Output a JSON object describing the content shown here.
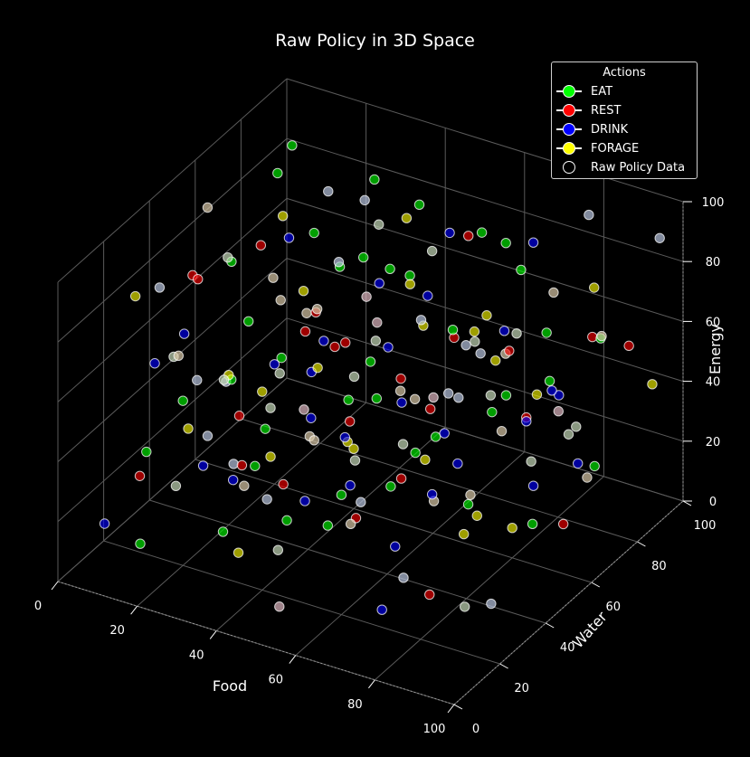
{
  "chart_data": {
    "type": "scatter",
    "projection": "3d",
    "title": "Raw Policy in 3D Space",
    "xlabel": "Food",
    "ylabel": "Water",
    "zlabel": "Energy",
    "xlim": [
      0,
      100
    ],
    "ylim": [
      0,
      100
    ],
    "zlim": [
      0,
      100
    ],
    "xticks": [
      "0",
      "20",
      "40",
      "60",
      "80",
      "100"
    ],
    "yticks": [
      "0",
      "20",
      "40",
      "60",
      "80",
      "100"
    ],
    "zticks": [
      "0",
      "20",
      "40",
      "60",
      "80",
      "100"
    ],
    "grid": true,
    "legend": {
      "title": "Actions",
      "placement": "top-right",
      "entries": [
        {
          "label": "EAT",
          "color": "#00ff00",
          "style": "line-marker"
        },
        {
          "label": "REST",
          "color": "#ff0000",
          "style": "line-marker"
        },
        {
          "label": "DRINK",
          "color": "#0000ff",
          "style": "line-marker"
        },
        {
          "label": "FORAGE",
          "color": "#ffff00",
          "style": "line-marker"
        },
        {
          "label": "Raw Policy Data",
          "color": "#000000",
          "style": "marker"
        }
      ]
    },
    "marker_style": "blended action color with white edge, semi-transparent",
    "series": [
      {
        "name": "EAT",
        "color": "#00ff00",
        "points": [
          [
            10,
            85,
            92
          ],
          [
            15,
            70,
            95
          ],
          [
            30,
            60,
            88
          ],
          [
            45,
            80,
            90
          ],
          [
            25,
            40,
            70
          ],
          [
            55,
            90,
            78
          ],
          [
            20,
            20,
            55
          ],
          [
            65,
            60,
            70
          ],
          [
            35,
            30,
            45
          ],
          [
            80,
            75,
            65
          ],
          [
            50,
            50,
            60
          ],
          [
            12,
            55,
            35
          ],
          [
            70,
            35,
            48
          ],
          [
            40,
            70,
            30
          ],
          [
            85,
            90,
            55
          ],
          [
            28,
            85,
            62
          ],
          [
            60,
            20,
            40
          ],
          [
            90,
            40,
            72
          ],
          [
            5,
            30,
            25
          ],
          [
            48,
            62,
            82
          ],
          [
            75,
            85,
            40
          ],
          [
            33,
            15,
            20
          ],
          [
            18,
            92,
            50
          ],
          [
            95,
            70,
            30
          ],
          [
            58,
            45,
            25
          ],
          [
            8,
            62,
            68
          ],
          [
            42,
            25,
            75
          ],
          [
            68,
            78,
            88
          ],
          [
            22,
            48,
            15
          ],
          [
            88,
            55,
            18
          ],
          [
            38,
            88,
            58
          ],
          [
            52,
            10,
            35
          ],
          [
            78,
            30,
            60
          ],
          [
            15,
            10,
            12
          ],
          [
            62,
            95,
            65
          ],
          [
            30,
            75,
            22
          ],
          [
            92,
            20,
            50
          ],
          [
            45,
            40,
            10
          ],
          [
            72,
            65,
            42
          ],
          [
            25,
            95,
            80
          ]
        ]
      },
      {
        "name": "REST",
        "color": "#ff0000",
        "points": [
          [
            5,
            80,
            60
          ],
          [
            18,
            30,
            88
          ],
          [
            40,
            10,
            65
          ],
          [
            62,
            72,
            92
          ],
          [
            85,
            50,
            78
          ],
          [
            12,
            15,
            30
          ],
          [
            35,
            65,
            50
          ],
          [
            55,
            35,
            20
          ],
          [
            75,
            20,
            85
          ],
          [
            95,
            85,
            60
          ],
          [
            28,
            50,
            10
          ],
          [
            48,
            90,
            40
          ],
          [
            68,
            45,
            55
          ],
          [
            88,
            10,
            25
          ],
          [
            8,
            45,
            75
          ],
          [
            52,
            60,
            15
          ],
          [
            72,
            80,
            30
          ],
          [
            22,
            70,
            45
          ],
          [
            42,
            40,
            80
          ],
          [
            90,
            65,
            12
          ],
          [
            15,
            95,
            20
          ],
          [
            65,
            15,
            70
          ],
          [
            32,
            25,
            35
          ],
          [
            80,
            95,
            50
          ]
        ]
      },
      {
        "name": "DRINK",
        "color": "#0000ff",
        "points": [
          [
            3,
            50,
            50
          ],
          [
            20,
            60,
            40
          ],
          [
            38,
            45,
            55
          ],
          [
            55,
            55,
            45
          ],
          [
            72,
            50,
            35
          ],
          [
            90,
            60,
            60
          ],
          [
            10,
            25,
            60
          ],
          [
            28,
            15,
            40
          ],
          [
            45,
            30,
            25
          ],
          [
            62,
            40,
            10
          ],
          [
            80,
            25,
            45
          ],
          [
            98,
            35,
            70
          ],
          [
            15,
            75,
            70
          ],
          [
            32,
            85,
            55
          ],
          [
            50,
            75,
            65
          ],
          [
            68,
            90,
            80
          ],
          [
            85,
            80,
            20
          ],
          [
            6,
            10,
            15
          ],
          [
            24,
            35,
            20
          ],
          [
            42,
            55,
            12
          ],
          [
            60,
            65,
            30
          ],
          [
            78,
            60,
            75
          ],
          [
            94,
            45,
            40
          ],
          [
            35,
            50,
            35
          ],
          [
            58,
            25,
            55
          ],
          [
            76,
            10,
            15
          ],
          [
            18,
            85,
            30
          ],
          [
            44,
            95,
            70
          ],
          [
            66,
            30,
            85
          ],
          [
            86,
            70,
            50
          ]
        ]
      },
      {
        "name": "FORAGE",
        "color": "#ffff00",
        "points": [
          [
            8,
            20,
            85
          ],
          [
            25,
            55,
            95
          ],
          [
            45,
            15,
            50
          ],
          [
            62,
            80,
            60
          ],
          [
            82,
            40,
            90
          ],
          [
            14,
            65,
            25
          ],
          [
            36,
            90,
            75
          ],
          [
            54,
            20,
            80
          ],
          [
            74,
            55,
            15
          ],
          [
            92,
            75,
            85
          ],
          [
            20,
            40,
            50
          ],
          [
            40,
            60,
            20
          ],
          [
            60,
            50,
            90
          ],
          [
            80,
            60,
            10
          ],
          [
            98,
            90,
            45
          ],
          [
            30,
            5,
            60
          ],
          [
            50,
            40,
            40
          ],
          [
            70,
            70,
            55
          ],
          [
            88,
            25,
            35
          ],
          [
            10,
            90,
            40
          ],
          [
            34,
            20,
            10
          ],
          [
            66,
            95,
            25
          ],
          [
            84,
            15,
            65
          ],
          [
            46,
            80,
            50
          ]
        ]
      },
      {
        "name": "",
        "color": "#ffffff",
        "points": [
          [
            2,
            70,
            20
          ],
          [
            12,
            40,
            45
          ],
          [
            22,
            80,
            85
          ],
          [
            32,
            10,
            55
          ],
          [
            42,
            50,
            90
          ],
          [
            52,
            85,
            25
          ],
          [
            62,
            25,
            35
          ],
          [
            72,
            60,
            65
          ],
          [
            82,
            90,
            95
          ],
          [
            92,
            30,
            10
          ],
          [
            6,
            55,
            90
          ],
          [
            16,
            25,
            65
          ],
          [
            26,
            65,
            15
          ],
          [
            36,
            35,
            85
          ],
          [
            46,
            70,
            35
          ],
          [
            56,
            15,
            60
          ],
          [
            66,
            50,
            20
          ],
          [
            76,
            85,
            70
          ],
          [
            86,
            45,
            55
          ],
          [
            96,
            65,
            30
          ],
          [
            4,
            90,
            10
          ],
          [
            14,
            50,
            80
          ],
          [
            24,
            10,
            35
          ],
          [
            34,
            80,
            40
          ],
          [
            44,
            20,
            15
          ],
          [
            54,
            70,
            85
          ],
          [
            64,
            40,
            45
          ],
          [
            74,
            95,
            15
          ],
          [
            84,
            55,
            80
          ],
          [
            94,
            15,
            20
          ],
          [
            9,
            35,
            55
          ],
          [
            19,
            60,
            25
          ],
          [
            29,
            90,
            70
          ],
          [
            39,
            5,
            80
          ],
          [
            49,
            45,
            30
          ],
          [
            59,
            80,
            50
          ],
          [
            69,
            10,
            90
          ],
          [
            79,
            70,
            25
          ],
          [
            89,
            35,
            75
          ],
          [
            99,
            55,
            55
          ],
          [
            11,
            75,
            55
          ],
          [
            21,
            45,
            10
          ],
          [
            31,
            55,
            65
          ],
          [
            41,
            85,
            20
          ],
          [
            51,
            25,
            95
          ],
          [
            61,
            90,
            40
          ],
          [
            71,
            5,
            45
          ],
          [
            81,
            40,
            35
          ],
          [
            91,
            80,
            65
          ],
          [
            17,
            15,
            95
          ],
          [
            27,
            30,
            30
          ],
          [
            37,
            70,
            95
          ],
          [
            47,
            10,
            40
          ],
          [
            57,
            60,
            70
          ],
          [
            67,
            35,
            5
          ],
          [
            77,
            45,
            80
          ],
          [
            87,
            20,
            85
          ],
          [
            97,
            95,
            90
          ],
          [
            23,
            95,
            40
          ],
          [
            43,
            65,
            60
          ],
          [
            63,
            55,
            50
          ],
          [
            83,
            75,
            40
          ],
          [
            13,
            85,
            5
          ],
          [
            53,
            5,
            10
          ]
        ]
      }
    ]
  }
}
